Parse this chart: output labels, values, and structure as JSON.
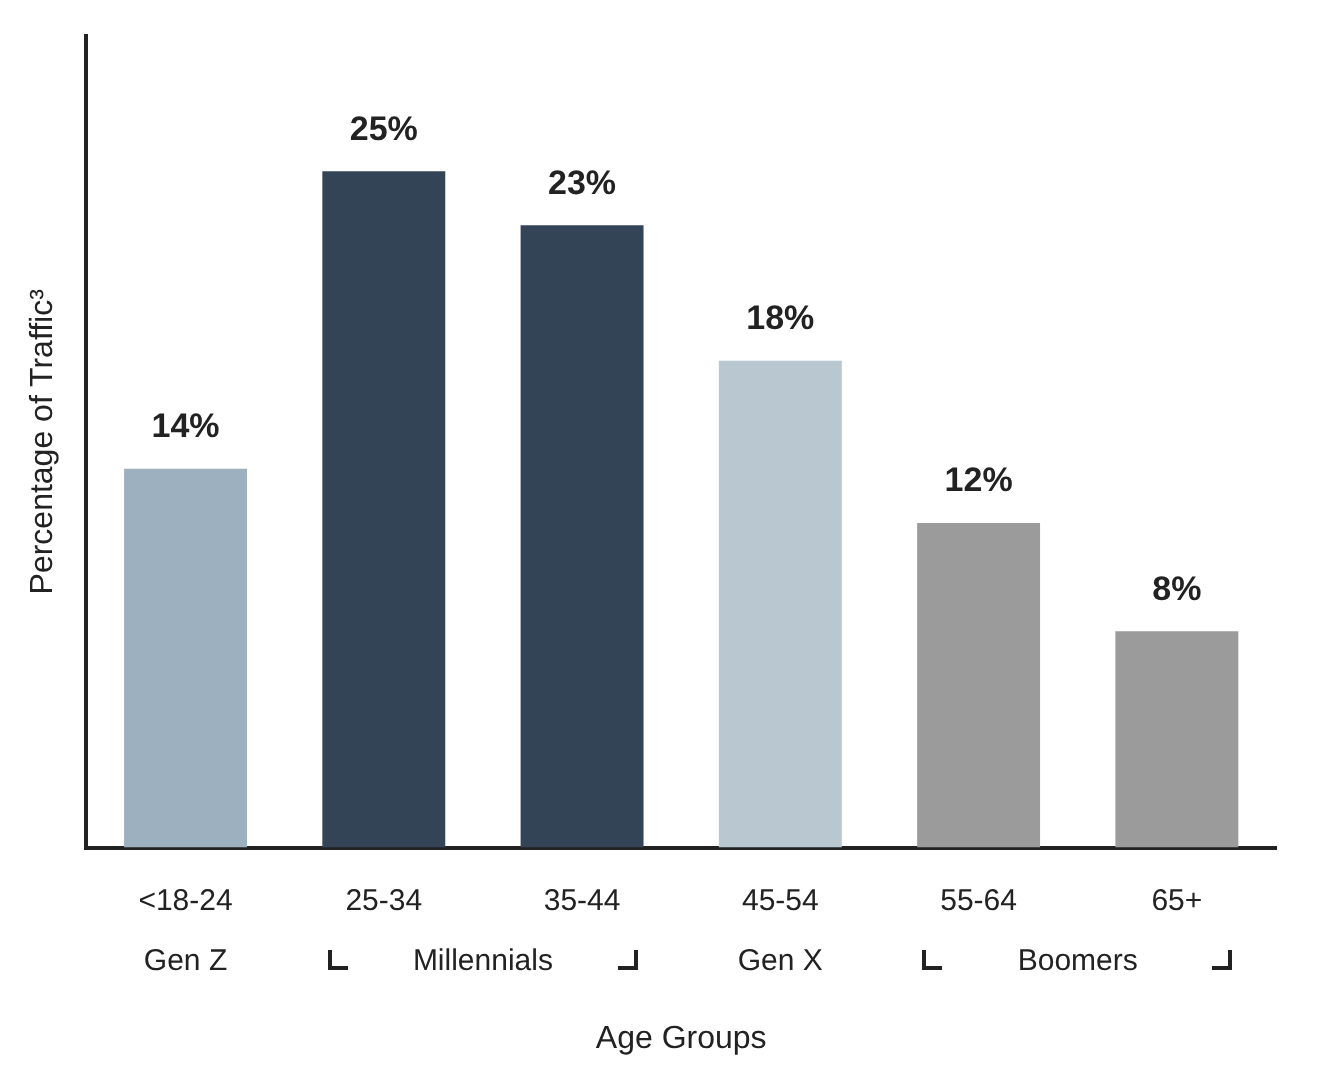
{
  "chart_data": {
    "type": "bar",
    "ylabel": "Percentage of Traffic³",
    "xlabel": "Age Groups",
    "categories": [
      "<18-24",
      "25-34",
      "35-44",
      "45-54",
      "55-64",
      "65+"
    ],
    "values": [
      14,
      25,
      23,
      18,
      12,
      8
    ],
    "colors": [
      "#9cb0bf",
      "#334456",
      "#334456",
      "#b9c7d1",
      "#9b9b9b",
      "#9b9b9b"
    ],
    "value_labels": [
      "14%",
      "25%",
      "23%",
      "18%",
      "12%",
      "8%"
    ],
    "annotations": [
      "Gen Z",
      "Millennials",
      "Gen X",
      "Boomers"
    ],
    "grid": false,
    "legend": false
  }
}
